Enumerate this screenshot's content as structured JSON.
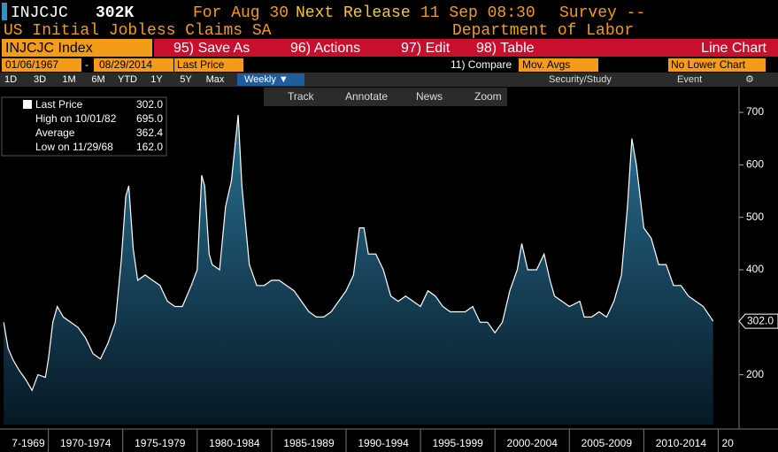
{
  "header": {
    "ticker": "INJCJC",
    "value": "302K",
    "for": "For Aug 30",
    "next_release": "Next Release",
    "release_time": "11 Sep 08:30",
    "survey": "Survey --",
    "description": "US Initial Jobless Claims SA",
    "source": "Department of Labor"
  },
  "toolbar": {
    "security": "INJCJC Index",
    "save_as": "95) Save As",
    "actions": "96) Actions",
    "edit": "97) Edit",
    "table": "98) Table",
    "chart_type": "Line Chart",
    "start_date": "01/06/1967",
    "date_sep": "-",
    "end_date": "08/29/2014",
    "field": "Last Price",
    "compare": "11) Compare",
    "mov_avgs": "Mov. Avgs",
    "lower_chart": "No Lower Chart",
    "periods": [
      "1D",
      "3D",
      "1M",
      "6M",
      "YTD",
      "1Y",
      "5Y",
      "Max"
    ],
    "frequency": "Weekly ▼",
    "study": "Security/Study",
    "event": "Event",
    "tools": [
      "Track",
      "Annotate",
      "News",
      "Zoom"
    ]
  },
  "chart_data": {
    "type": "area",
    "legend": [
      {
        "name": "Last Price",
        "value": 302,
        "label": "302.0"
      },
      {
        "name": "High on 10/01/82",
        "value": 695,
        "label": "695.0"
      },
      {
        "name": "Average",
        "value": 362.4,
        "label": "362.4"
      },
      {
        "name": "Low on 11/29/68",
        "value": 162,
        "label": "162.0"
      }
    ],
    "last_value": {
      "value": 302,
      "label": "302.0"
    },
    "series": [
      {
        "name": "Last Price",
        "color": "#ffffff",
        "x": [
          1967.0,
          1967.3,
          1967.6,
          1968.0,
          1968.5,
          1968.9,
          1969.3,
          1969.8,
          1970.0,
          1970.3,
          1970.6,
          1971.0,
          1971.5,
          1972.0,
          1972.5,
          1973.0,
          1973.5,
          1974.0,
          1974.5,
          1974.9,
          1975.2,
          1975.4,
          1975.7,
          1976.0,
          1976.5,
          1977.0,
          1977.5,
          1978.0,
          1978.5,
          1979.0,
          1979.6,
          1980.0,
          1980.3,
          1980.5,
          1980.8,
          1981.0,
          1981.5,
          1981.9,
          1982.3,
          1982.75,
          1983.0,
          1983.5,
          1984.0,
          1984.5,
          1985.0,
          1985.5,
          1986.0,
          1986.5,
          1987.0,
          1987.5,
          1988.0,
          1988.5,
          1989.0,
          1989.5,
          1990.0,
          1990.5,
          1990.9,
          1991.2,
          1991.5,
          1992.0,
          1992.5,
          1993.0,
          1993.5,
          1994.0,
          1994.5,
          1995.0,
          1995.5,
          1996.0,
          1996.5,
          1997.0,
          1997.5,
          1998.0,
          1998.5,
          1999.0,
          1999.5,
          2000.0,
          2000.5,
          2001.0,
          2001.5,
          2001.8,
          2002.2,
          2002.8,
          2003.3,
          2003.7,
          2004.0,
          2004.5,
          2005.0,
          2005.7,
          2006.0,
          2006.5,
          2007.0,
          2007.5,
          2008.0,
          2008.5,
          2008.9,
          2009.2,
          2009.5,
          2010.0,
          2010.5,
          2011.0,
          2011.5,
          2012.0,
          2012.5,
          2013.0,
          2013.5,
          2014.0,
          2014.66
        ],
        "values": [
          300,
          250,
          230,
          210,
          190,
          170,
          200,
          195,
          230,
          300,
          330,
          310,
          300,
          290,
          270,
          240,
          230,
          260,
          300,
          420,
          540,
          560,
          440,
          380,
          390,
          380,
          370,
          340,
          330,
          330,
          370,
          400,
          580,
          560,
          430,
          410,
          400,
          520,
          570,
          695,
          560,
          410,
          370,
          370,
          380,
          380,
          370,
          360,
          340,
          320,
          310,
          310,
          320,
          340,
          360,
          390,
          480,
          480,
          430,
          430,
          400,
          350,
          340,
          350,
          340,
          330,
          360,
          350,
          330,
          320,
          320,
          320,
          330,
          300,
          300,
          280,
          300,
          360,
          400,
          450,
          400,
          400,
          430,
          380,
          350,
          340,
          330,
          340,
          310,
          310,
          320,
          310,
          340,
          390,
          520,
          650,
          600,
          480,
          460,
          410,
          410,
          370,
          370,
          350,
          340,
          330,
          302
        ]
      }
    ],
    "xlim": [
      1966.75,
      2016.4
    ],
    "ylim": [
      105,
      749
    ],
    "xticks": [
      1970,
      1975,
      1980,
      1985,
      1990,
      1995,
      2000,
      2005,
      2010,
      2015
    ],
    "categories": [
      "7-1969",
      "1970-1974",
      "1975-1979",
      "1980-1984",
      "1985-1989",
      "1990-1994",
      "1995-1999",
      "2000-2004",
      "2005-2009",
      "2010-2014",
      "20"
    ],
    "yticks": [
      200,
      400,
      500,
      600,
      700
    ]
  }
}
